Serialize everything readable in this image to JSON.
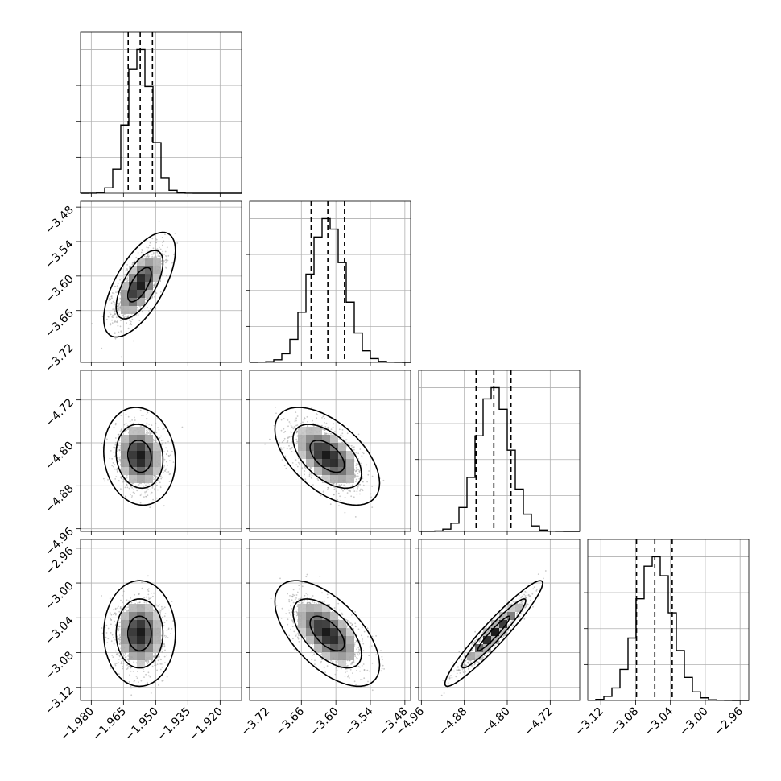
{
  "chart_data": {
    "type": "corner",
    "parameters": [
      {
        "index": 0,
        "mean": -1.9575,
        "sd": 0.0055,
        "q16": -1.9628,
        "q50": -1.9572,
        "q84": -1.9515,
        "range": [
          -1.985,
          -1.91
        ],
        "ticks": [
          -1.98,
          -1.965,
          -1.95,
          -1.935,
          -1.92
        ],
        "tick_labels": [
          "−1.980",
          "−1.965",
          "−1.950",
          "−1.935",
          "−1.920"
        ]
      },
      {
        "index": 1,
        "mean": -3.615,
        "sd": 0.03,
        "q16": -3.643,
        "q50": -3.614,
        "q84": -3.585,
        "range": [
          -3.75,
          -3.47
        ],
        "ticks": [
          -3.72,
          -3.66,
          -3.6,
          -3.54,
          -3.48
        ],
        "tick_labels": [
          "−3.72",
          "−3.66",
          "−3.60",
          "−3.54",
          "−3.48"
        ]
      },
      {
        "index": 2,
        "mean": -4.825,
        "sd": 0.03,
        "q16": -4.858,
        "q50": -4.825,
        "q84": -4.793,
        "range": [
          -4.965,
          -4.665
        ],
        "ticks": [
          -4.96,
          -4.88,
          -4.8,
          -4.72
        ],
        "tick_labels": [
          "−4.96",
          "−4.88",
          "−4.80",
          "−4.72"
        ]
      },
      {
        "index": 3,
        "mean": -3.058,
        "sd": 0.02,
        "q16": -3.079,
        "q50": -3.058,
        "q84": -3.038,
        "range": [
          -3.135,
          -2.95
        ],
        "ticks": [
          -3.12,
          -3.08,
          -3.04,
          -3.0,
          -2.96
        ],
        "tick_labels": [
          "−3.12",
          "−3.08",
          "−3.04",
          "−3.00",
          "−2.96"
        ]
      }
    ],
    "correlations": {
      "0-1": 0.65,
      "0-2": -0.1,
      "0-3": 0.0,
      "1-2": -0.55,
      "1-3": -0.6,
      "2-3": 0.95
    },
    "quantiles": [
      0.16,
      0.5,
      0.84
    ],
    "histogram_bins": 20,
    "contour_levels": [
      0.39,
      0.86,
      0.99
    ],
    "grid": true,
    "colors": {
      "line": "#000000",
      "grid": "#b0b0b0",
      "scatter": "#9a9a9a"
    }
  }
}
